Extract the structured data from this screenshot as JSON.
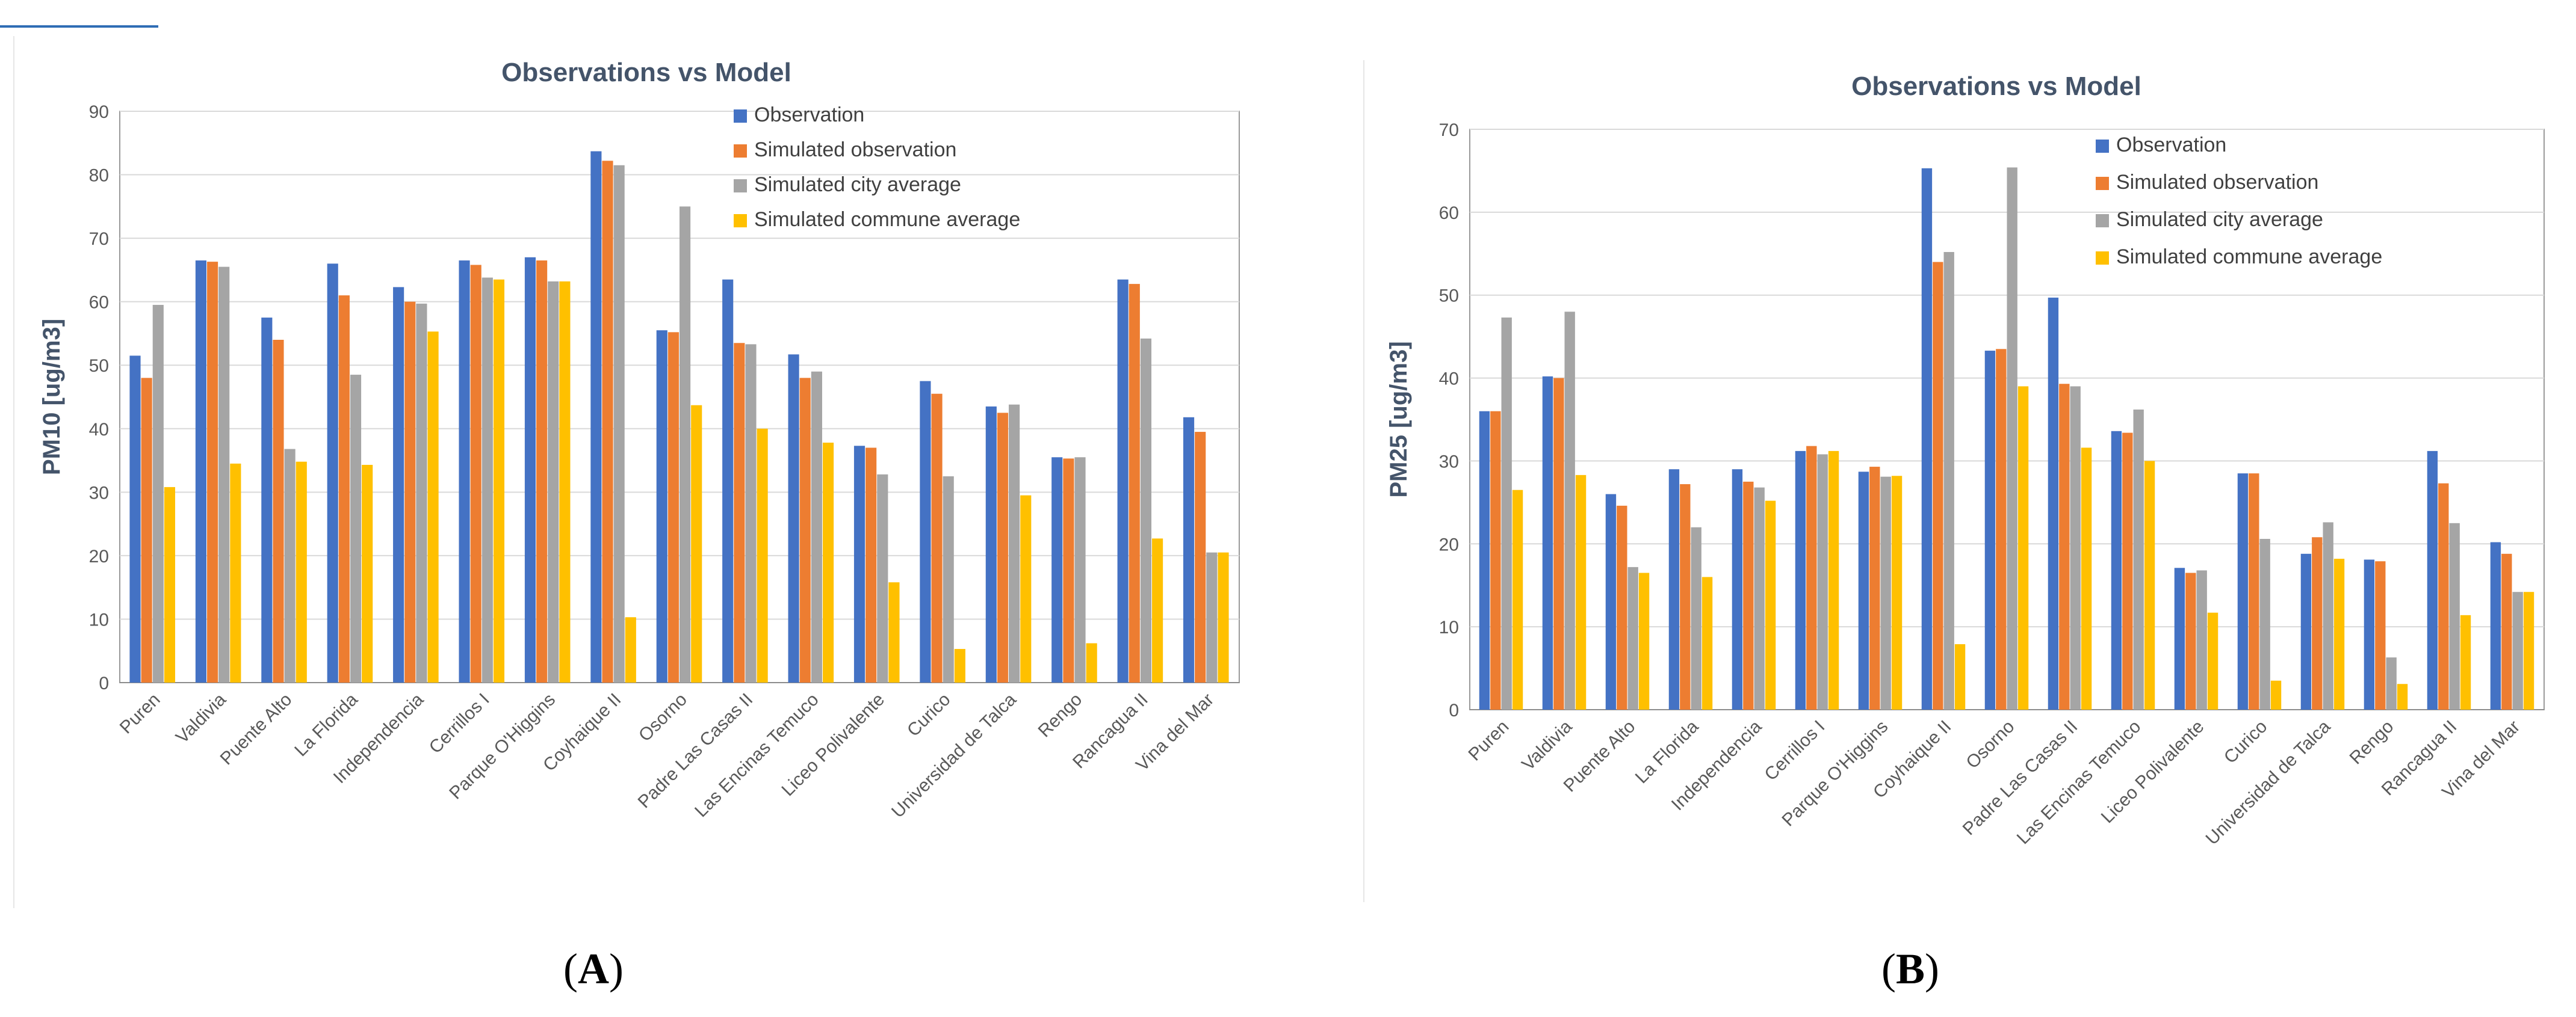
{
  "panels": {
    "A": {
      "label_open": "(",
      "label_letter": "A",
      "label_close": ")"
    },
    "B": {
      "label_open": "(",
      "label_letter": "B",
      "label_close": ")"
    }
  },
  "chart_data": [
    {
      "id": "A",
      "type": "bar",
      "title": "Observations vs Model",
      "xlabel": "",
      "ylabel": "PM10 [ug/m3]",
      "ylim": [
        0,
        90
      ],
      "yticks": [
        0,
        10,
        20,
        30,
        40,
        50,
        60,
        70,
        80,
        90
      ],
      "grid": true,
      "legend_position": "top-right",
      "categories": [
        "Puren",
        "Valdivia",
        "Puente Alto",
        "La Florida",
        "Independencia",
        "Cerrillos I",
        "Parque O'Higgins",
        "Coyhaique II",
        "Osorno",
        "Padre Las Casas II",
        "Las Encinas Temuco",
        "Liceo Polivalente",
        "Curico",
        "Universidad de Talca",
        "Rengo",
        "Rancagua II",
        "Vina del Mar"
      ],
      "series": [
        {
          "name": "Observation",
          "color": "#4472C4",
          "values": [
            51.5,
            66.5,
            57.5,
            66,
            62.3,
            66.5,
            67,
            83.7,
            55.5,
            63.5,
            51.7,
            37.3,
            47.5,
            43.5,
            35.5,
            63.5,
            41.8
          ]
        },
        {
          "name": "Simulated observation",
          "color": "#ED7D31",
          "values": [
            48,
            66.3,
            54,
            61,
            60,
            65.8,
            66.5,
            82.2,
            55.2,
            53.5,
            48,
            37,
            45.5,
            42.5,
            35.3,
            62.8,
            39.5
          ]
        },
        {
          "name": "Simulated city average",
          "color": "#A5A5A5",
          "values": [
            59.5,
            65.5,
            36.8,
            48.5,
            59.7,
            63.8,
            63.2,
            81.5,
            75,
            53.3,
            49,
            32.8,
            32.5,
            43.8,
            35.5,
            54.2,
            20.5
          ]
        },
        {
          "name": "Simulated commune average",
          "color": "#FFC000",
          "values": [
            30.8,
            34.5,
            34.8,
            34.3,
            55.3,
            63.5,
            63.2,
            10.3,
            43.7,
            40,
            37.8,
            15.8,
            5.3,
            29.5,
            6.2,
            22.7,
            20.5
          ]
        }
      ]
    },
    {
      "id": "B",
      "type": "bar",
      "title": "Observations vs Model",
      "xlabel": "",
      "ylabel": "PM25 [ug/m3]",
      "ylim": [
        0,
        70
      ],
      "yticks": [
        0,
        10,
        20,
        30,
        40,
        50,
        60,
        70
      ],
      "grid": true,
      "legend_position": "top-right",
      "categories": [
        "Puren",
        "Valdivia",
        "Puente Alto",
        "La Florida",
        "Independencia",
        "Cerrillos I",
        "Parque O'Higgins",
        "Coyhaique II",
        "Osorno",
        "Padre Las Casas II",
        "Las Encinas Temuco",
        "Liceo Polivalente",
        "Curico",
        "Universidad de Talca",
        "Rengo",
        "Rancagua II",
        "Vina del Mar"
      ],
      "series": [
        {
          "name": "Observation",
          "color": "#4472C4",
          "values": [
            36,
            40.2,
            26,
            29,
            29,
            31.2,
            28.7,
            65.3,
            43.3,
            49.7,
            33.6,
            17.1,
            28.5,
            18.8,
            18.1,
            31.2,
            20.2
          ]
        },
        {
          "name": "Simulated observation",
          "color": "#ED7D31",
          "values": [
            36,
            40,
            24.6,
            27.2,
            27.5,
            31.8,
            29.3,
            54,
            43.5,
            39.3,
            33.4,
            16.5,
            28.5,
            20.8,
            17.9,
            27.3,
            18.8
          ]
        },
        {
          "name": "Simulated city average",
          "color": "#A5A5A5",
          "values": [
            47.3,
            48,
            17.2,
            22,
            26.8,
            30.8,
            28.1,
            55.2,
            65.4,
            39,
            36.2,
            16.8,
            20.6,
            22.6,
            6.3,
            22.5,
            14.2
          ]
        },
        {
          "name": "Simulated commune average",
          "color": "#FFC000",
          "values": [
            26.5,
            28.3,
            16.5,
            16,
            25.2,
            31.2,
            28.2,
            7.9,
            39,
            31.6,
            30,
            11.7,
            3.5,
            18.2,
            3.1,
            11.4,
            14.2
          ]
        }
      ]
    }
  ]
}
